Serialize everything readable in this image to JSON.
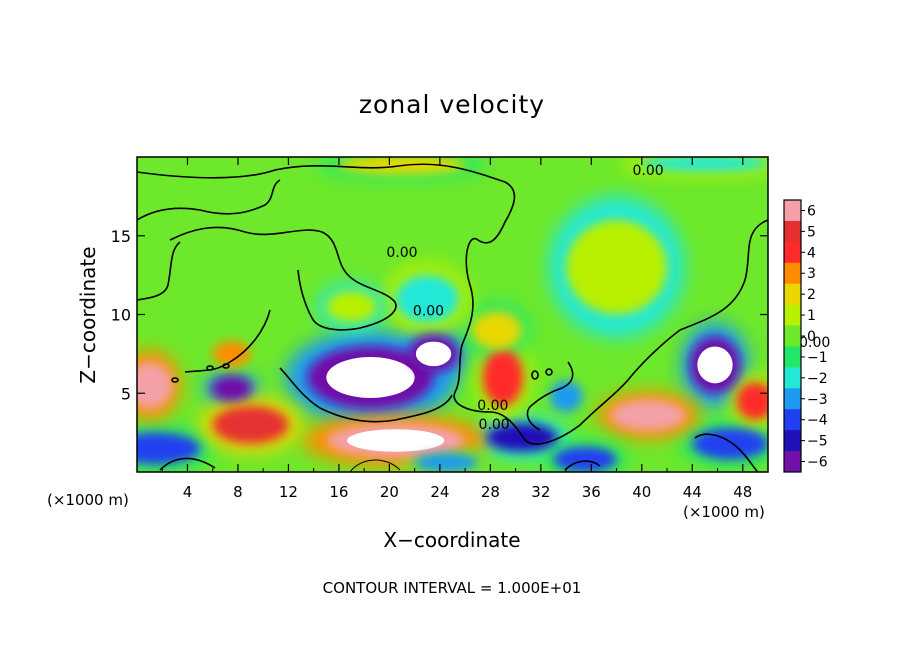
{
  "chart_data": {
    "type": "heatmap",
    "title": "zonal velocity",
    "xlabel": "X−coordinate",
    "ylabel": "Z−coordinate",
    "x_unit": "(×1000 m)",
    "z_unit": "(×1000 m)",
    "xlim": [
      0,
      50
    ],
    "ylim": [
      0,
      20
    ],
    "x_ticks": [
      4,
      8,
      12,
      16,
      20,
      24,
      28,
      32,
      36,
      40,
      44,
      48
    ],
    "y_ticks": [
      5,
      10,
      15
    ],
    "colorbar": {
      "levels": [
        "6",
        "5",
        "4",
        "3",
        "2",
        "1",
        "0",
        "−1",
        "−2",
        "−3",
        "−4",
        "−5",
        "−6"
      ],
      "colors": [
        "#f4a0a8",
        "#e63030",
        "#ff2a2a",
        "#ff8c00",
        "#e8d800",
        "#b8f000",
        "#6ee82a",
        "#22e86a",
        "#22e8d8",
        "#1e9af0",
        "#2040f0",
        "#2010b8",
        "#7010a8"
      ]
    },
    "contour_labels": [
      {
        "text": "0.00",
        "x": 21,
        "y": 13.9
      },
      {
        "text": "0.00",
        "x": 40.5,
        "y": 19.1
      },
      {
        "text": "0.00",
        "x": 23.1,
        "y": 10.2
      },
      {
        "text": "0.00",
        "x": 28.2,
        "y": 4.2
      },
      {
        "text": "0.00",
        "x": 53.7,
        "y": 8.2
      },
      {
        "text": "0.00",
        "x": 28.3,
        "y": 3.0
      }
    ],
    "anomalies": [
      {
        "x": 18.5,
        "y": 6.0,
        "rx": 5.0,
        "ry": 2.0,
        "value": -8
      },
      {
        "x": 23.5,
        "y": 7.5,
        "rx": 2.0,
        "ry": 1.2,
        "value": -7
      },
      {
        "x": 45.8,
        "y": 6.8,
        "rx": 2.0,
        "ry": 1.8,
        "value": -8
      },
      {
        "x": 7.5,
        "y": 5.3,
        "rx": 1.6,
        "ry": 0.8,
        "value": -6
      },
      {
        "x": 34.0,
        "y": 4.8,
        "rx": 1.3,
        "ry": 1.0,
        "value": -3
      },
      {
        "x": 30.5,
        "y": 2.2,
        "rx": 2.8,
        "ry": 0.9,
        "value": -5
      },
      {
        "x": 47.0,
        "y": 1.8,
        "rx": 3.0,
        "ry": 1.0,
        "value": -4
      },
      {
        "x": 1.5,
        "y": 1.5,
        "rx": 3.5,
        "ry": 1.0,
        "value": -4
      },
      {
        "x": 20.5,
        "y": 2.0,
        "rx": 5.5,
        "ry": 1.1,
        "value": 7
      },
      {
        "x": 9.0,
        "y": 3.0,
        "rx": 3.0,
        "ry": 1.2,
        "value": 5
      },
      {
        "x": 1.0,
        "y": 5.5,
        "rx": 1.8,
        "ry": 1.5,
        "value": 6
      },
      {
        "x": 40.5,
        "y": 3.6,
        "rx": 3.0,
        "ry": 1.0,
        "value": 6
      },
      {
        "x": 29.0,
        "y": 6.0,
        "rx": 1.6,
        "ry": 1.8,
        "value": 4
      },
      {
        "x": 28.5,
        "y": 9.0,
        "rx": 2.0,
        "ry": 1.2,
        "value": 2
      },
      {
        "x": 49.0,
        "y": 4.5,
        "rx": 1.5,
        "ry": 1.2,
        "value": 4
      },
      {
        "x": 7.5,
        "y": 7.5,
        "rx": 1.5,
        "ry": 0.8,
        "value": 3
      },
      {
        "x": 23.0,
        "y": 11.0,
        "rx": 2.5,
        "ry": 1.5,
        "value": -2
      },
      {
        "x": 21.0,
        "y": 19.5,
        "rx": 5.0,
        "ry": 0.6,
        "value": 2
      },
      {
        "x": 45.0,
        "y": 19.6,
        "rx": 5.0,
        "ry": 0.5,
        "value": -2
      },
      {
        "x": 17.0,
        "y": 10.5,
        "rx": 2.0,
        "ry": 1.0,
        "value": 1.5
      },
      {
        "x": 38.0,
        "y": 13.0,
        "rx": 4.0,
        "ry": 3.0,
        "value": 1.2
      },
      {
        "x": 24.5,
        "y": 0.6,
        "rx": 2.5,
        "ry": 0.6,
        "value": -3
      },
      {
        "x": 35.5,
        "y": 0.8,
        "rx": 2.5,
        "ry": 0.8,
        "value": -4
      }
    ]
  },
  "footer": {
    "contour_interval": "CONTOUR INTERVAL = 1.000E+01"
  }
}
